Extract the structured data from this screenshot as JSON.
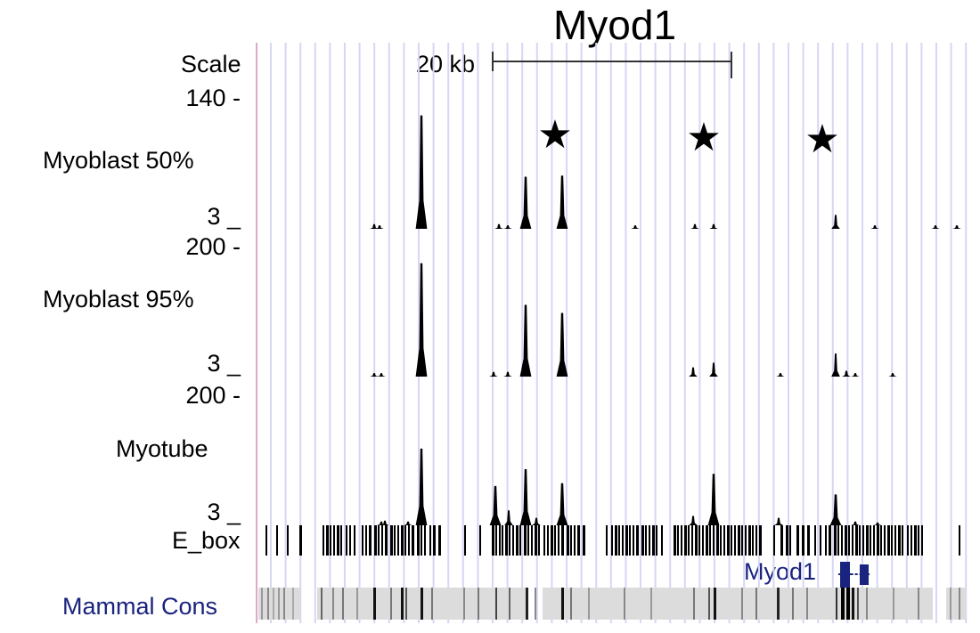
{
  "header": {
    "title": "Myod1"
  },
  "scale": {
    "label": "Scale",
    "bar_label": "20 kb"
  },
  "tracks": [
    {
      "name": "Myoblast 50%",
      "max_label": "140 -",
      "min_label": "3 _",
      "peaks": [
        [
          473,
          0.98
        ],
        [
          420,
          0.04
        ],
        [
          426,
          0.03
        ],
        [
          560,
          0.04
        ],
        [
          570,
          0.03
        ],
        [
          590,
          0.45
        ],
        [
          631,
          0.46
        ],
        [
          713,
          0.03
        ],
        [
          780,
          0.04
        ],
        [
          801,
          0.04
        ],
        [
          938,
          0.12
        ],
        [
          982,
          0.03
        ],
        [
          1050,
          0.03
        ],
        [
          1074,
          0.03
        ]
      ]
    },
    {
      "name": "Myoblast 95%",
      "max_label": "200 -",
      "min_label": "3 _",
      "peaks": [
        [
          473,
          0.98
        ],
        [
          420,
          0.03
        ],
        [
          428,
          0.03
        ],
        [
          554,
          0.04
        ],
        [
          570,
          0.04
        ],
        [
          590,
          0.62
        ],
        [
          631,
          0.55
        ],
        [
          778,
          0.08
        ],
        [
          801,
          0.12
        ],
        [
          876,
          0.03
        ],
        [
          938,
          0.2
        ],
        [
          950,
          0.05
        ],
        [
          960,
          0.03
        ],
        [
          1002,
          0.03
        ]
      ]
    },
    {
      "name": "Myotube",
      "max_label": "200 -",
      "min_label": "3 _",
      "peaks": [
        [
          473,
          0.82
        ],
        [
          428,
          0.04
        ],
        [
          432,
          0.05
        ],
        [
          458,
          0.04
        ],
        [
          556,
          0.42
        ],
        [
          571,
          0.16
        ],
        [
          590,
          0.6
        ],
        [
          602,
          0.08
        ],
        [
          631,
          0.45
        ],
        [
          778,
          0.1
        ],
        [
          801,
          0.55
        ],
        [
          874,
          0.08
        ],
        [
          938,
          0.33
        ],
        [
          960,
          0.04
        ],
        [
          985,
          0.03
        ]
      ]
    }
  ],
  "ebox": {
    "label": "E_box"
  },
  "gene": {
    "label": "Myod1",
    "icon": "gene-model-icon"
  },
  "conservation": {
    "label": "Mammal Cons"
  },
  "stars": {
    "glyph": "★",
    "count": 3
  },
  "colors": {
    "grid": "#d6d6f5",
    "left_border": "#e3a6c6",
    "gene": "#1a237e",
    "signal": "#000000",
    "cons_bg": "#dcdcdc"
  }
}
